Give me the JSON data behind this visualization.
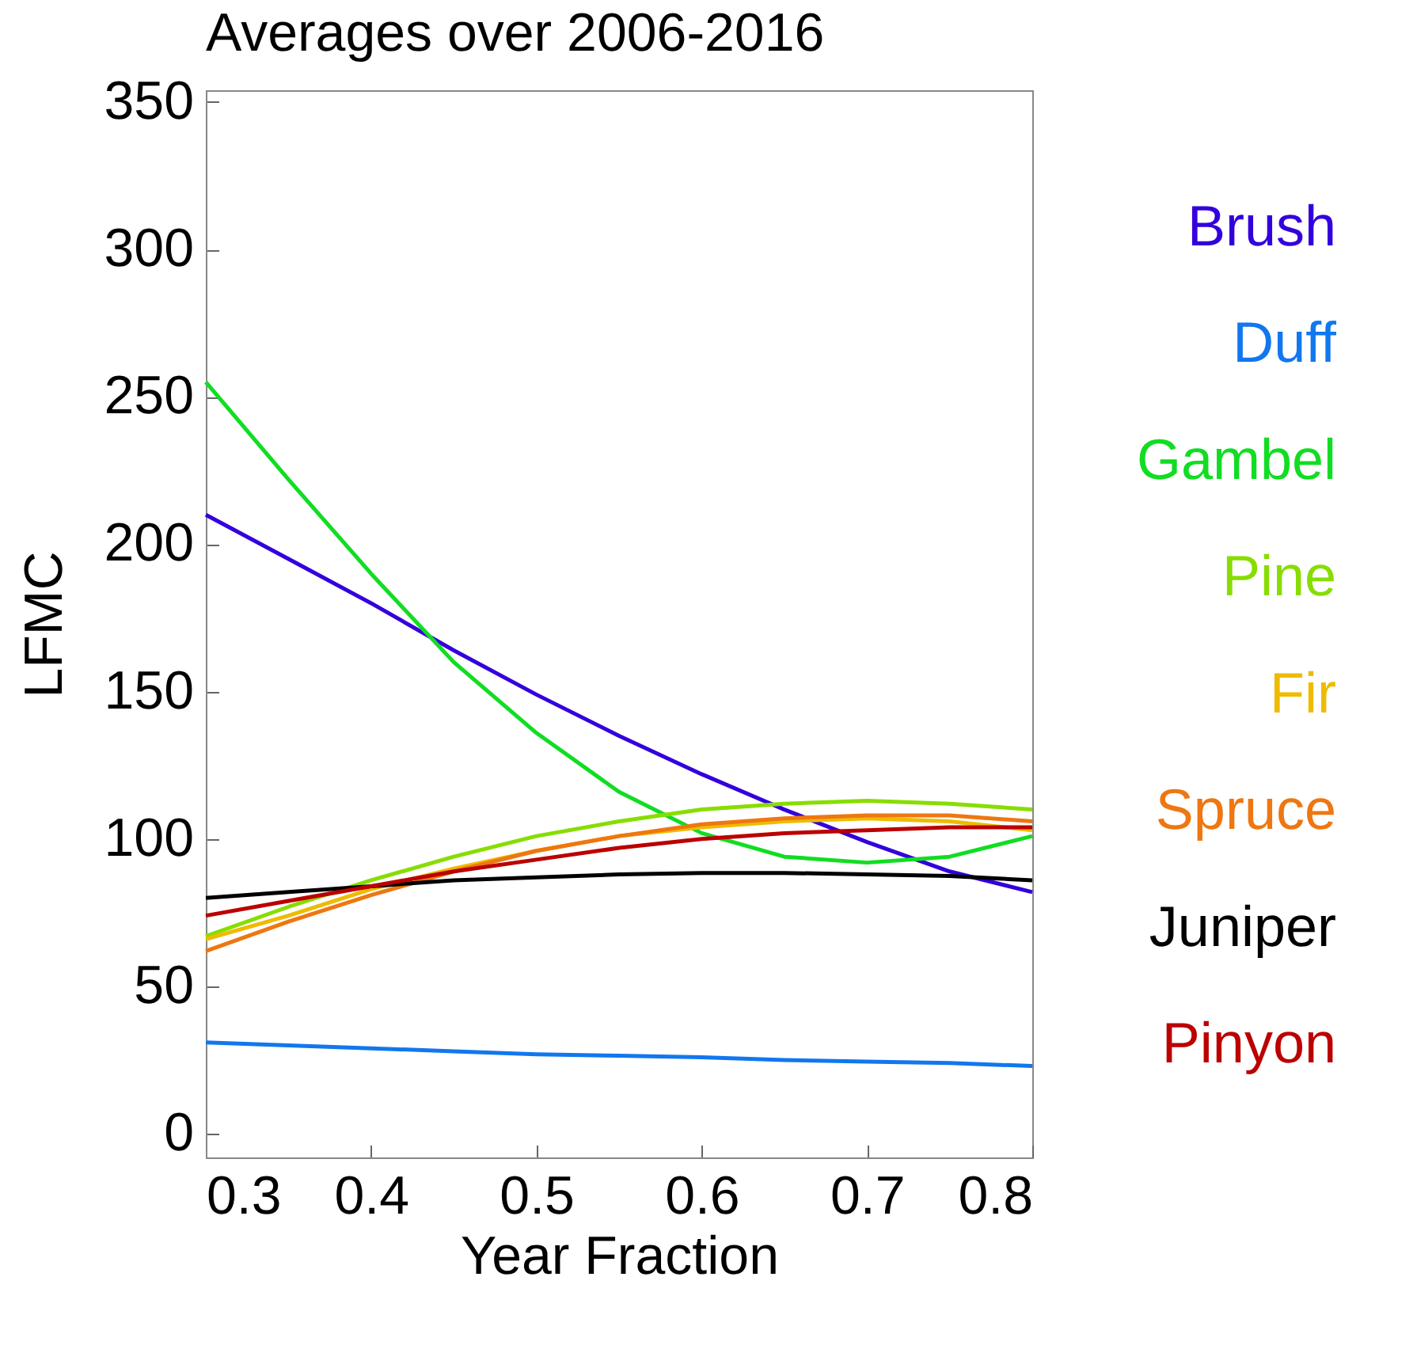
{
  "chart_data": {
    "type": "line",
    "title": "Averages over 2006-2016",
    "xlabel": "Year Fraction",
    "ylabel": "LFMC",
    "x": [
      0.3,
      0.35,
      0.4,
      0.45,
      0.5,
      0.55,
      0.6,
      0.65,
      0.7,
      0.75,
      0.8
    ],
    "xlim": [
      0.3,
      0.8
    ],
    "xticks": [
      0.3,
      0.4,
      0.5,
      0.6,
      0.7,
      0.8
    ],
    "ylim": [
      -8,
      354
    ],
    "yticks": [
      0,
      50,
      100,
      150,
      200,
      250,
      300,
      350
    ],
    "grid": false,
    "legend": "right",
    "marker": "none",
    "line_style": "solid",
    "series": [
      {
        "name": "Brush",
        "color": "#3300dd",
        "values": [
          210,
          195,
          180,
          164,
          149,
          135,
          122,
          110,
          99,
          89,
          82
        ]
      },
      {
        "name": "Duff",
        "color": "#1177ee",
        "values": [
          31,
          30,
          29,
          28,
          27,
          26.5,
          26,
          25,
          24.5,
          24,
          23
        ]
      },
      {
        "name": "Gambel",
        "color": "#11dd22",
        "values": [
          255,
          222,
          190,
          160,
          136,
          116,
          102,
          94,
          92,
          94,
          101
        ]
      },
      {
        "name": "Pine",
        "color": "#88dd00",
        "values": [
          67,
          77,
          86,
          94,
          101,
          106,
          110,
          112,
          113,
          112,
          110
        ]
      },
      {
        "name": "Fir",
        "color": "#eebb00",
        "values": [
          66,
          74,
          83,
          90,
          96,
          101,
          104,
          106,
          107,
          106,
          103
        ]
      },
      {
        "name": "Spruce",
        "color": "#ee7711",
        "values": [
          62,
          72,
          81,
          89,
          96,
          101,
          105,
          107,
          108,
          108,
          106
        ]
      },
      {
        "name": "Juniper",
        "color": "#000000",
        "values": [
          80,
          82,
          84,
          86,
          87,
          88,
          88.5,
          88.5,
          88,
          87.5,
          86
        ]
      },
      {
        "name": "Pinyon",
        "color": "#bb0000",
        "values": [
          74,
          79,
          84,
          89,
          93,
          97,
          100,
          102,
          103,
          104,
          104
        ]
      }
    ]
  }
}
